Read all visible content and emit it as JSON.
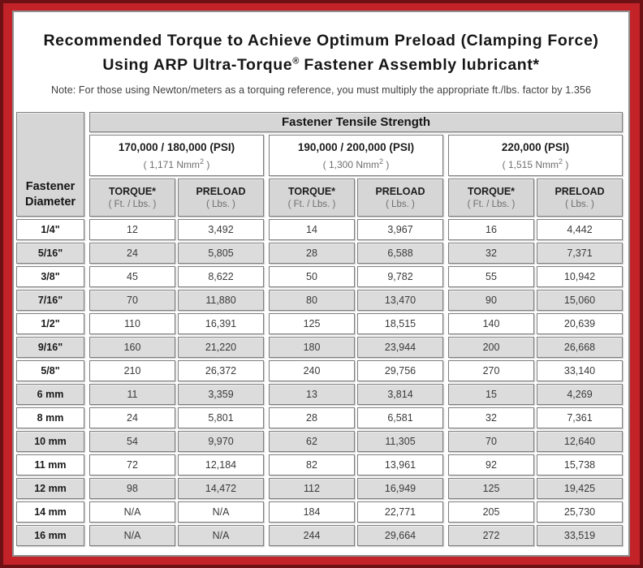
{
  "title": {
    "line1": "Recommended Torque to Achieve Optimum Preload (Clamping Force)",
    "line2_pre": "Using ARP Ultra-Torque",
    "line2_reg": "®",
    "line2_post": " Fastener Assembly lubricant*"
  },
  "note": "Note: For those using Newton/meters as a torquing reference, you must multiply the appropriate ft./lbs. factor by 1.356",
  "table": {
    "banner": "Fastener Tensile Strength",
    "corner_label": "Fastener Diameter",
    "groups": [
      {
        "psi": "170,000 / 180,000 (PSI)",
        "nmm_pre": "( 1,171 Nmm",
        "nmm_sup": "2",
        "nmm_post": " )"
      },
      {
        "psi": "190,000 / 200,000 (PSI)",
        "nmm_pre": "( 1,300 Nmm",
        "nmm_sup": "2",
        "nmm_post": " )"
      },
      {
        "psi": "220,000 (PSI)",
        "nmm_pre": "( 1,515 Nmm",
        "nmm_sup": "2",
        "nmm_post": " )"
      }
    ],
    "col_headers": {
      "torque": "TORQUE*",
      "torque_sub": "( Ft. / Lbs. )",
      "preload": "PRELOAD",
      "preload_sub": "( Lbs. )"
    },
    "rows": [
      {
        "diameter": "1/4\"",
        "values": [
          "12",
          "3,492",
          "14",
          "3,967",
          "16",
          "4,442"
        ]
      },
      {
        "diameter": "5/16\"",
        "values": [
          "24",
          "5,805",
          "28",
          "6,588",
          "32",
          "7,371"
        ]
      },
      {
        "diameter": "3/8\"",
        "values": [
          "45",
          "8,622",
          "50",
          "9,782",
          "55",
          "10,942"
        ]
      },
      {
        "diameter": "7/16\"",
        "values": [
          "70",
          "11,880",
          "80",
          "13,470",
          "90",
          "15,060"
        ]
      },
      {
        "diameter": "1/2\"",
        "values": [
          "110",
          "16,391",
          "125",
          "18,515",
          "140",
          "20,639"
        ]
      },
      {
        "diameter": "9/16\"",
        "values": [
          "160",
          "21,220",
          "180",
          "23,944",
          "200",
          "26,668"
        ]
      },
      {
        "diameter": "5/8\"",
        "values": [
          "210",
          "26,372",
          "240",
          "29,756",
          "270",
          "33,140"
        ]
      },
      {
        "diameter": "6 mm",
        "values": [
          "11",
          "3,359",
          "13",
          "3,814",
          "15",
          "4,269"
        ]
      },
      {
        "diameter": "8 mm",
        "values": [
          "24",
          "5,801",
          "28",
          "6,581",
          "32",
          "7,361"
        ]
      },
      {
        "diameter": "10 mm",
        "values": [
          "54",
          "9,970",
          "62",
          "11,305",
          "70",
          "12,640"
        ]
      },
      {
        "diameter": "11 mm",
        "values": [
          "72",
          "12,184",
          "82",
          "13,961",
          "92",
          "15,738"
        ]
      },
      {
        "diameter": "12 mm",
        "values": [
          "98",
          "14,472",
          "112",
          "16,949",
          "125",
          "19,425"
        ]
      },
      {
        "diameter": "14 mm",
        "values": [
          "N/A",
          "N/A",
          "184",
          "22,771",
          "205",
          "25,730"
        ]
      },
      {
        "diameter": "16 mm",
        "values": [
          "N/A",
          "N/A",
          "244",
          "29,664",
          "272",
          "33,519"
        ]
      }
    ]
  },
  "colors": {
    "frame_red": "#c22228",
    "frame_edge_dark": "#6d1115",
    "header_gray": "#d6d6d6",
    "alt_row_gray": "#dcdcdc",
    "cell_border": "#7e7e7e"
  }
}
